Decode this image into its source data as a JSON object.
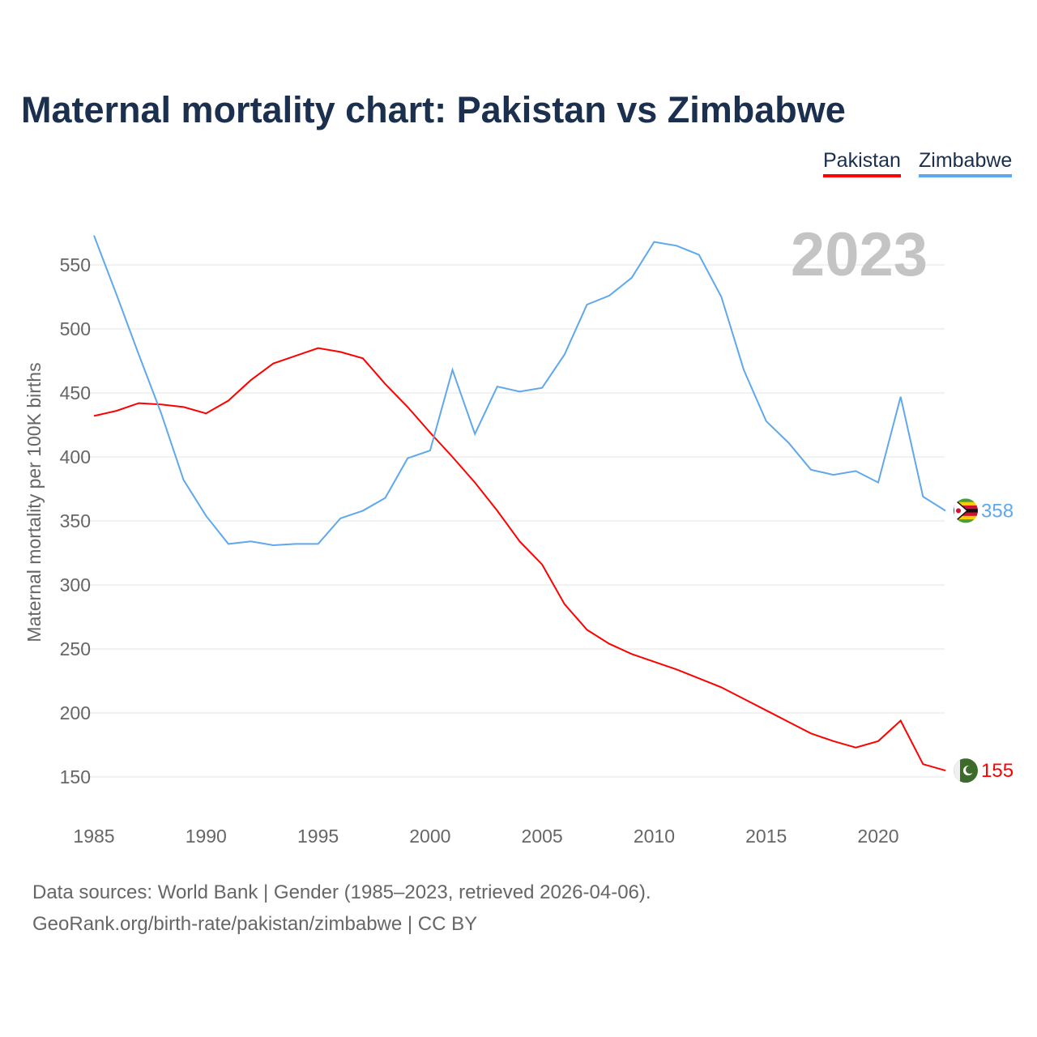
{
  "chart_data": {
    "type": "line",
    "title": "Maternal mortality chart: Pakistan vs Zimbabwe",
    "ylabel": "Maternal mortality per 100K births",
    "xlabel": "",
    "ylim": [
      150,
      570
    ],
    "xlim": [
      1985,
      2023
    ],
    "yticks": [
      150,
      200,
      250,
      300,
      350,
      400,
      450,
      500,
      550
    ],
    "xticks": [
      1985,
      1990,
      1995,
      2000,
      2005,
      2010,
      2015,
      2020
    ],
    "grid": true,
    "legend_position": "top-right",
    "year_label": "2023",
    "x": [
      1985,
      1986,
      1987,
      1988,
      1989,
      1990,
      1991,
      1992,
      1993,
      1994,
      1995,
      1996,
      1997,
      1998,
      1999,
      2000,
      2001,
      2002,
      2003,
      2004,
      2005,
      2006,
      2007,
      2008,
      2009,
      2010,
      2011,
      2012,
      2013,
      2014,
      2015,
      2016,
      2017,
      2018,
      2019,
      2020,
      2021,
      2022,
      2023
    ],
    "series": [
      {
        "name": "Pakistan",
        "color": "#ff0000",
        "end_label": "155",
        "values": [
          432,
          436,
          442,
          441,
          439,
          434,
          444,
          460,
          473,
          479,
          485,
          482,
          477,
          457,
          439,
          419,
          400,
          380,
          358,
          334,
          316,
          285,
          265,
          254,
          246,
          240,
          234,
          227,
          220,
          211,
          202,
          193,
          184,
          178,
          173,
          178,
          194,
          160,
          155
        ]
      },
      {
        "name": "Zimbabwe",
        "color": "#5fa8ec",
        "end_label": "358",
        "values": [
          573,
          527,
          480,
          434,
          382,
          354,
          332,
          334,
          331,
          332,
          332,
          352,
          358,
          368,
          399,
          405,
          468,
          418,
          455,
          451,
          454,
          480,
          519,
          526,
          540,
          568,
          565,
          558,
          525,
          468,
          428,
          411,
          390,
          386,
          389,
          380,
          447,
          369,
          358
        ]
      }
    ]
  },
  "footer": {
    "line1": "Data sources: World Bank | Gender (1985–2023, retrieved 2026-04-06).",
    "line2": "GeoRank.org/birth-rate/pakistan/zimbabwe | CC BY"
  }
}
